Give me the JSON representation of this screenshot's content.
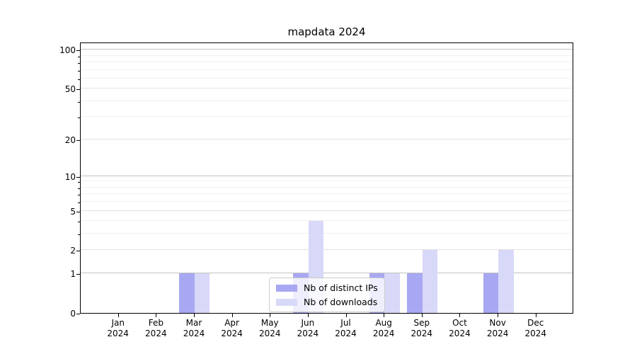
{
  "chart_data": {
    "type": "bar",
    "title": "mapdata 2024",
    "categories": [
      "Jan",
      "Feb",
      "Mar",
      "Apr",
      "May",
      "Jun",
      "Jul",
      "Aug",
      "Sep",
      "Oct",
      "Nov",
      "Dec"
    ],
    "year_label": "2024",
    "series": [
      {
        "name": "Nb of distinct IPs",
        "color": "#a8a8f2",
        "values": [
          0,
          0,
          1,
          0,
          0,
          1,
          0,
          1,
          1,
          0,
          1,
          0
        ]
      },
      {
        "name": "Nb of downloads",
        "color": "#d8d8f8",
        "values": [
          0,
          0,
          1,
          0,
          0,
          4,
          0,
          1,
          2,
          0,
          2,
          0
        ]
      }
    ],
    "xlabel": "",
    "ylabel": "",
    "yscale": "log1p",
    "ylim": [
      0,
      115
    ],
    "yticks_major": [
      0,
      1,
      2,
      5,
      10,
      20,
      50,
      100
    ],
    "yticks_decade": [
      1,
      10,
      100
    ],
    "yticks_minor": [
      3,
      4,
      6,
      7,
      8,
      9,
      30,
      40,
      60,
      70,
      80,
      90
    ],
    "grid": "on",
    "legend_position": "lower center"
  }
}
